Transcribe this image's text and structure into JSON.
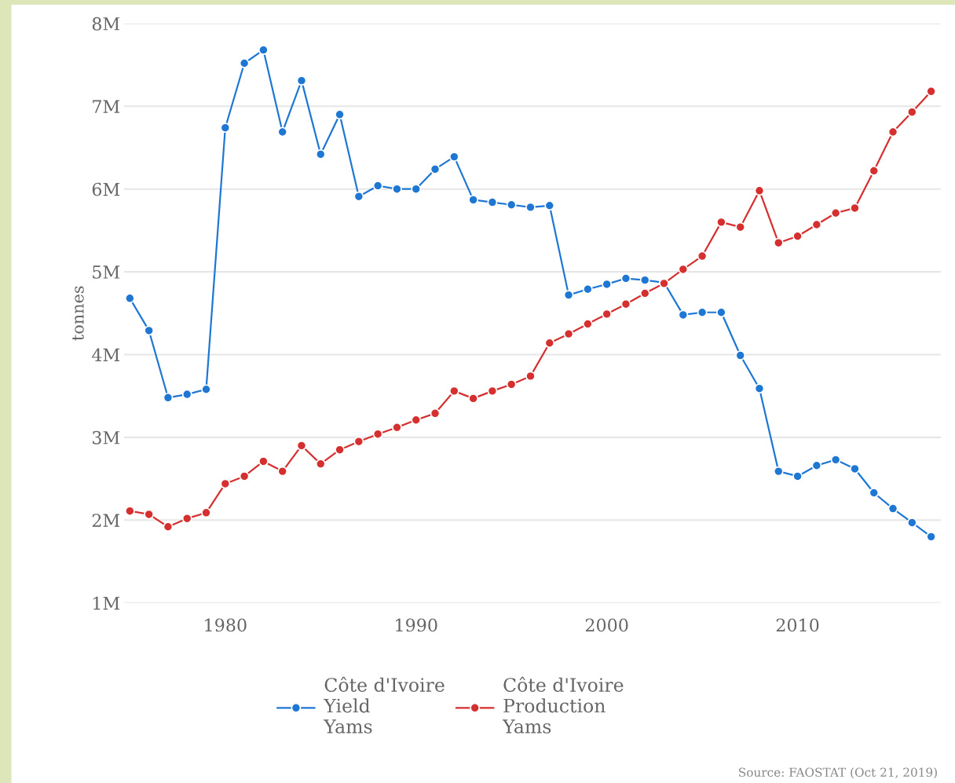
{
  "chart_data": {
    "type": "line",
    "ylabel": "tonnes",
    "x": [
      1975,
      1976,
      1977,
      1978,
      1979,
      1980,
      1981,
      1982,
      1983,
      1984,
      1985,
      1986,
      1987,
      1988,
      1989,
      1990,
      1991,
      1992,
      1993,
      1994,
      1995,
      1996,
      1997,
      1998,
      1999,
      2000,
      2001,
      2002,
      2003,
      2004,
      2005,
      2006,
      2007,
      2008,
      2009,
      2010,
      2011,
      2012,
      2013,
      2014,
      2015,
      2016,
      2017
    ],
    "series": [
      {
        "name": "Côte d'Ivoire\nYield\nYams",
        "color": "#1f77d4",
        "values": [
          4680000,
          4290000,
          3480000,
          3520000,
          3580000,
          6740000,
          7520000,
          7680000,
          6690000,
          7310000,
          6420000,
          6900000,
          5910000,
          6040000,
          6000000,
          6000000,
          6240000,
          6390000,
          5870000,
          5840000,
          5810000,
          5780000,
          5800000,
          4720000,
          4790000,
          4850000,
          4920000,
          4900000,
          4870000,
          4480000,
          4510000,
          4510000,
          3990000,
          3590000,
          2590000,
          2530000,
          2660000,
          2730000,
          2620000,
          2330000,
          2140000,
          1970000,
          1800000
        ]
      },
      {
        "name": "Côte d'Ivoire\nProduction\nYams",
        "color": "#d62f2f",
        "values": [
          2110000,
          2070000,
          1920000,
          2020000,
          2090000,
          2440000,
          2530000,
          2710000,
          2590000,
          2900000,
          2680000,
          2850000,
          2950000,
          3040000,
          3120000,
          3210000,
          3290000,
          3560000,
          3470000,
          3560000,
          3640000,
          3740000,
          4140000,
          4250000,
          4370000,
          4490000,
          4610000,
          4740000,
          4860000,
          5030000,
          5190000,
          5600000,
          5540000,
          5980000,
          5350000,
          5430000,
          5570000,
          5710000,
          5770000,
          6220000,
          6690000,
          6930000,
          7180000
        ]
      }
    ],
    "xlim": [
      1974.7,
      2017.5
    ],
    "xticks": [
      1980,
      1990,
      2000,
      2010
    ],
    "ylim": [
      1000000,
      8000000
    ],
    "yticks": [
      {
        "value": 1000000,
        "label": "1M"
      },
      {
        "value": 2000000,
        "label": "2M"
      },
      {
        "value": 3000000,
        "label": "3M"
      },
      {
        "value": 4000000,
        "label": "4M"
      },
      {
        "value": 5000000,
        "label": "5M"
      },
      {
        "value": 6000000,
        "label": "6M"
      },
      {
        "value": 7000000,
        "label": "7M"
      },
      {
        "value": 8000000,
        "label": "8M"
      }
    ],
    "grid": "y",
    "legend": "bottom",
    "marker": "circle",
    "line_style": "solid",
    "annotations": [
      "Source: FAOSTAT (Oct 21, 2019)"
    ]
  }
}
